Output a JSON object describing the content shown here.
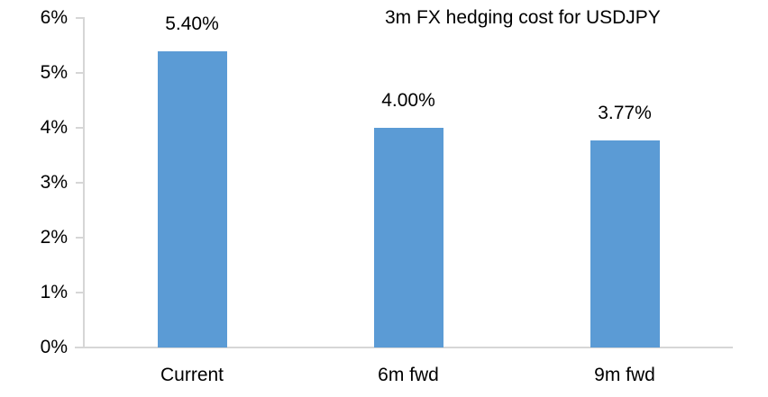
{
  "chart_data": {
    "type": "bar",
    "title": "3m FX hedging cost for USDJPY",
    "categories": [
      "Current",
      "6m fwd",
      "9m fwd"
    ],
    "values": [
      5.4,
      4.0,
      3.77
    ],
    "data_labels": [
      "5.40%",
      "4.00%",
      "3.77%"
    ],
    "xlabel": "",
    "ylabel": "",
    "ylim": [
      0,
      6
    ],
    "y_ticks": [
      {
        "value": 0,
        "label": "0%"
      },
      {
        "value": 1,
        "label": "1%"
      },
      {
        "value": 2,
        "label": "2%"
      },
      {
        "value": 3,
        "label": "3%"
      },
      {
        "value": 4,
        "label": "4%"
      },
      {
        "value": 5,
        "label": "5%"
      },
      {
        "value": 6,
        "label": "6%"
      }
    ],
    "grid": false,
    "legend_position": "none",
    "bar_color": "#5b9bd5",
    "axis_color": "#d6d6d6",
    "text_color": "#000000",
    "background_color": "#ffffff"
  }
}
